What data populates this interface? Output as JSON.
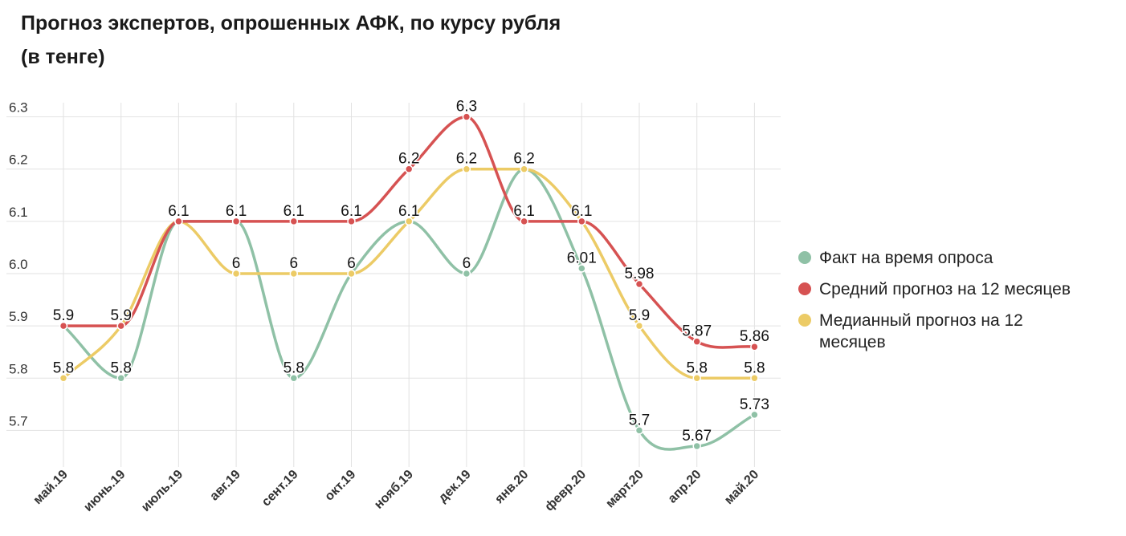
{
  "title_lines": [
    "Прогноз экспертов, опрошенных АФК, по курсу рубля",
    "(в тенге)"
  ],
  "chart_data": {
    "type": "line",
    "title": "Прогноз экспертов, опрошенных АФК, по курсу рубля (в тенге)",
    "xlabel": "",
    "ylabel": "",
    "categories": [
      "май.19",
      "июнь.19",
      "июль.19",
      "авг.19",
      "сент.19",
      "окт.19",
      "нояб.19",
      "дек.19",
      "янв.20",
      "февр.20",
      "март.20",
      "апр.20",
      "май.20"
    ],
    "y_ticks": [
      5.7,
      5.8,
      5.9,
      6.0,
      6.1,
      6.2,
      6.3
    ],
    "y_tick_labels": [
      "5.7",
      "5.8",
      "5.9",
      "6.0",
      "6.1",
      "6.2",
      "6.3"
    ],
    "ylim": [
      5.63,
      6.37
    ],
    "grid": true,
    "legend_position": "right",
    "series": [
      {
        "key": "fact",
        "name": "Факт на время опроса",
        "color": "#8fc1a6",
        "values": [
          5.9,
          5.8,
          6.1,
          6.1,
          5.8,
          6.0,
          6.1,
          6.0,
          6.2,
          6.01,
          5.7,
          5.67,
          5.73
        ],
        "labels": [
          null,
          "5.8",
          null,
          null,
          "5.8",
          null,
          null,
          "6",
          "6.2",
          "6.01",
          "5.7",
          "5.67",
          "5.73"
        ]
      },
      {
        "key": "mean",
        "name": "Средний прогноз на 12 месяцев",
        "color": "#d65252",
        "values": [
          5.9,
          5.9,
          6.1,
          6.1,
          6.1,
          6.1,
          6.2,
          6.3,
          6.1,
          6.1,
          5.98,
          5.87,
          5.86
        ],
        "labels": [
          "5.9",
          "5.9",
          null,
          "6.1",
          "6.1",
          "6.1",
          "6.2",
          "6.3",
          "6.1",
          "6.1",
          "5.98",
          "5.87",
          "5.86"
        ]
      },
      {
        "key": "median",
        "name": "Медианный прогноз на 12 месяцев",
        "color": "#eccb66",
        "values": [
          5.8,
          5.9,
          6.1,
          6.0,
          6.0,
          6.0,
          6.1,
          6.2,
          6.2,
          6.1,
          5.9,
          5.8,
          5.8
        ],
        "labels": [
          "5.8",
          null,
          "6.1",
          "6",
          "6",
          "6",
          "6.1",
          "6.2",
          null,
          null,
          "5.9",
          "5.8",
          "5.8"
        ]
      }
    ]
  },
  "legend": {
    "items": [
      {
        "label": "Факт на время опроса",
        "color": "#8fc1a6"
      },
      {
        "label": "Средний прогноз на 12 месяцев",
        "color": "#d65252"
      },
      {
        "label": "Медианный прогноз на 12 месяцев",
        "color": "#eccb66"
      }
    ]
  }
}
